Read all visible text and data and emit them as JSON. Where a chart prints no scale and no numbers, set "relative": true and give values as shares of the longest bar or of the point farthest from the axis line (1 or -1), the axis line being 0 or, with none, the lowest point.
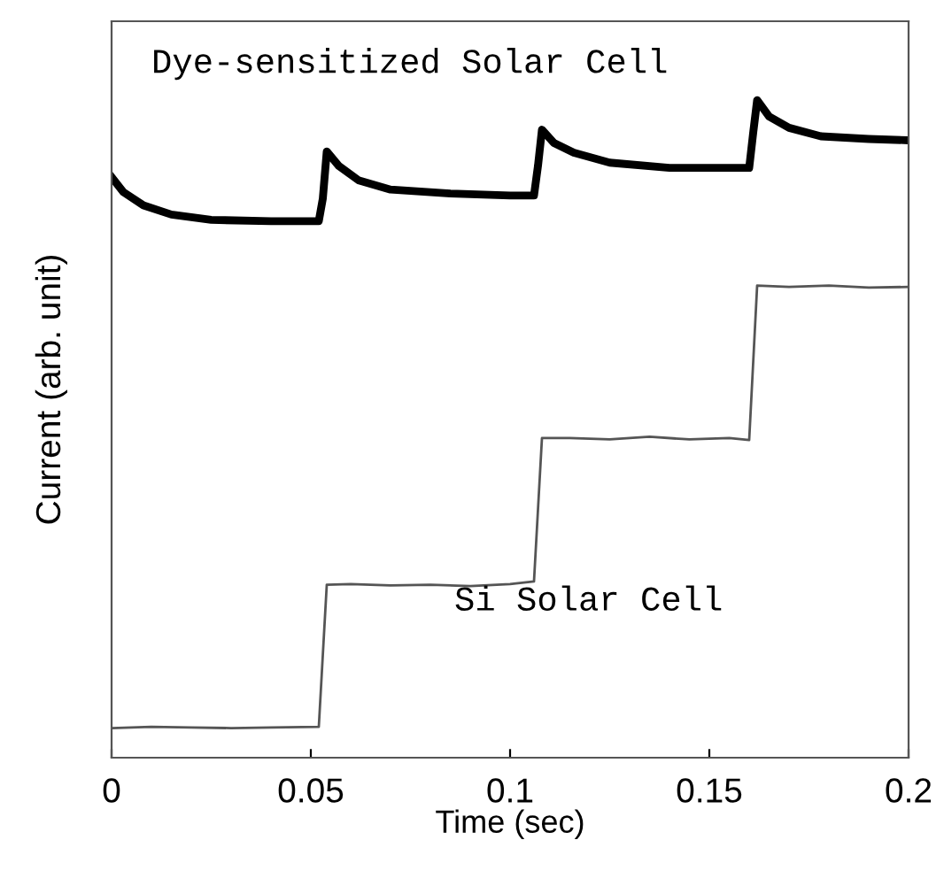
{
  "chart_data": {
    "type": "line",
    "relative": true,
    "xlabel": "Time (sec)",
    "ylabel": "Current (arb. unit)",
    "xlim": [
      0,
      0.2
    ],
    "xticks": [
      0,
      0.05,
      0.1,
      0.15,
      0.2
    ],
    "grid": false,
    "legend": false,
    "marker": "none",
    "line_style": "solid",
    "series": [
      {
        "name": "Dye-sensitized Solar Cell",
        "color": "#000000",
        "x": [
          0,
          0.003,
          0.008,
          0.015,
          0.025,
          0.04,
          0.052,
          0.053,
          0.054,
          0.057,
          0.062,
          0.07,
          0.085,
          0.1,
          0.106,
          0.107,
          0.108,
          0.111,
          0.116,
          0.125,
          0.14,
          0.155,
          0.16,
          0.161,
          0.162,
          0.165,
          0.17,
          0.178,
          0.19,
          0.2
        ],
        "values": [
          0.883,
          0.86,
          0.84,
          0.826,
          0.818,
          0.816,
          0.816,
          0.85,
          0.922,
          0.9,
          0.878,
          0.864,
          0.858,
          0.855,
          0.855,
          0.9,
          0.955,
          0.935,
          0.92,
          0.905,
          0.897,
          0.897,
          0.897,
          0.95,
          1,
          0.975,
          0.958,
          0.945,
          0.941,
          0.939
        ]
      },
      {
        "name": "Si Solar Cell",
        "color": "#555555",
        "x": [
          0,
          0.01,
          0.02,
          0.03,
          0.04,
          0.052,
          0.054,
          0.06,
          0.07,
          0.08,
          0.09,
          0.1,
          0.106,
          0.108,
          0.115,
          0.125,
          0.135,
          0.145,
          0.155,
          0.16,
          0.162,
          0.17,
          0.18,
          0.19,
          0.2
        ],
        "values": [
          0.045,
          0.047,
          0.046,
          0.045,
          0.046,
          0.047,
          0.263,
          0.264,
          0.262,
          0.263,
          0.261,
          0.264,
          0.268,
          0.486,
          0.486,
          0.484,
          0.488,
          0.484,
          0.486,
          0.483,
          0.718,
          0.716,
          0.718,
          0.715,
          0.716
        ]
      }
    ]
  }
}
